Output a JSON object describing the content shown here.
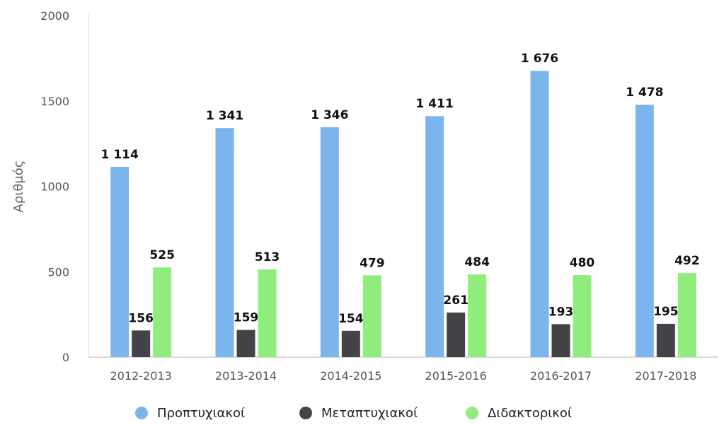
{
  "chart_data": {
    "type": "bar",
    "ylabel": "Αριθμός",
    "xlabel": "",
    "ylim": [
      0,
      2000
    ],
    "yticks": [
      0,
      500,
      1000,
      1500,
      2000
    ],
    "grid": false,
    "legend_position": "bottom",
    "categories": [
      "2012-2013",
      "2013-2014",
      "2014-2015",
      "2015-2016",
      "2016-2017",
      "2017-2018"
    ],
    "series": [
      {
        "name": "Προπτυχιακοί",
        "color": "#7cb5ec",
        "values": [
          1114,
          1341,
          1346,
          1411,
          1676,
          1478
        ],
        "labels": [
          "1 114",
          "1 341",
          "1 346",
          "1 411",
          "1 676",
          "1 478"
        ]
      },
      {
        "name": "Μεταπτυχιακοί",
        "color": "#434348",
        "values": [
          156,
          159,
          154,
          261,
          193,
          195
        ],
        "labels": [
          "156",
          "159",
          "154",
          "261",
          "193",
          "195"
        ]
      },
      {
        "name": "Διδακτορικοί",
        "color": "#90ed7d",
        "values": [
          525,
          513,
          479,
          484,
          480,
          492
        ],
        "labels": [
          "525",
          "513",
          "479",
          "484",
          "480",
          "492"
        ]
      }
    ]
  }
}
